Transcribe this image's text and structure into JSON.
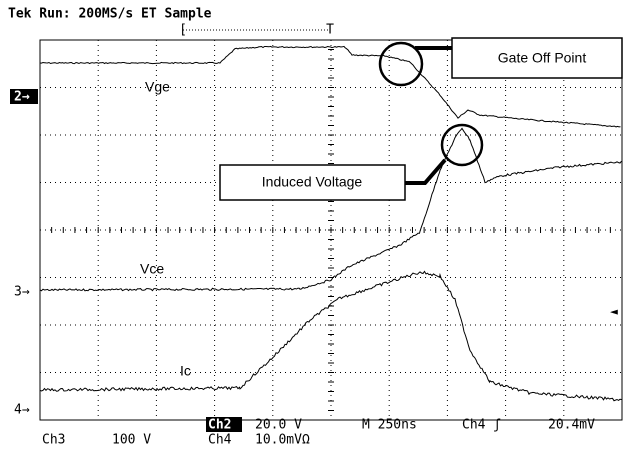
{
  "header": {
    "title": "Tek Run: 200MS/s ET Sample",
    "trigger_left": "[",
    "trigger": "T"
  },
  "markers": {
    "ch2": "2→",
    "ch3": "3→",
    "ch4": "4→",
    "level": "◄"
  },
  "traces": {
    "vge": "Vge",
    "vce": "Vce",
    "ic": "Ic"
  },
  "callouts": {
    "gate_off": "Gate Off Point",
    "induced": "Induced Voltage"
  },
  "footer": {
    "ch2": "Ch2",
    "ch2_scale": "20.0 V",
    "timebase": "M  250ns",
    "trigger_src": "Ch4 ʃ",
    "trigger_level": "20.4mV",
    "ch3": "Ch3",
    "ch3_scale": "100 V",
    "ch4": "Ch4",
    "ch4_scale": "10.0mVΩ"
  }
}
